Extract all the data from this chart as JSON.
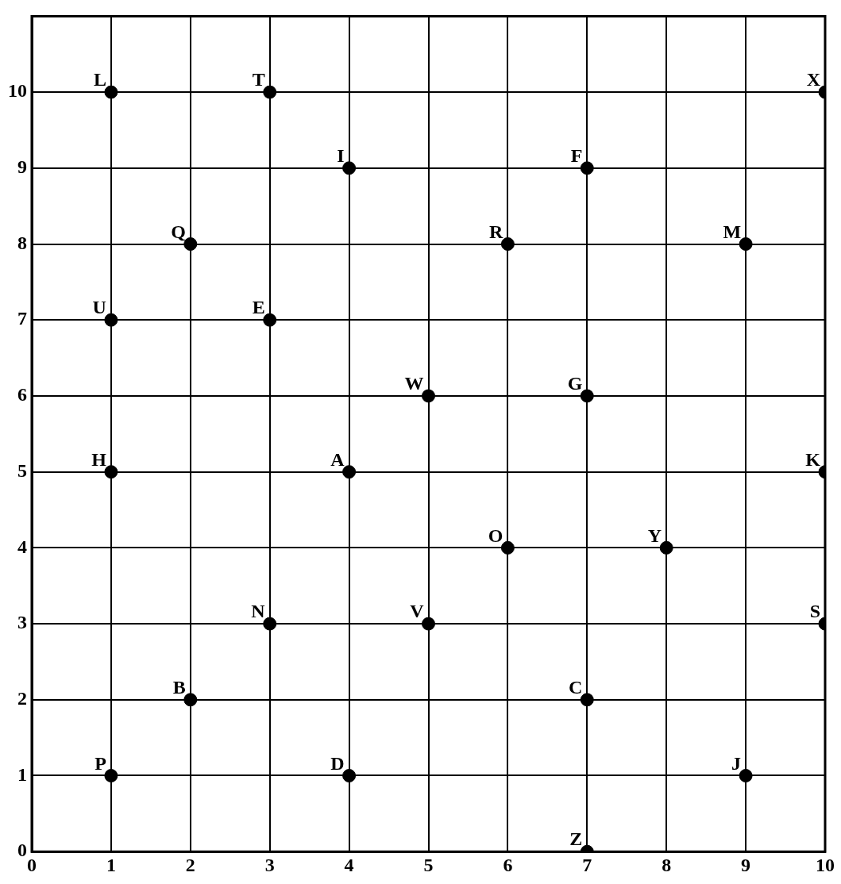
{
  "chart_data": {
    "type": "scatter",
    "x": [
      1,
      3,
      10,
      4,
      7,
      2,
      6,
      9,
      1,
      3,
      5,
      7,
      1,
      4,
      10,
      6,
      8,
      3,
      5,
      10,
      2,
      7,
      1,
      4,
      9,
      7
    ],
    "values": [
      10,
      10,
      10,
      9,
      9,
      8,
      8,
      8,
      7,
      7,
      6,
      6,
      5,
      5,
      5,
      4,
      4,
      3,
      3,
      3,
      2,
      2,
      1,
      1,
      1,
      0
    ],
    "color": "#000000",
    "marker": "circle",
    "xlim": [
      0,
      10
    ],
    "xticks": [
      0,
      1,
      2,
      3,
      4,
      5,
      6,
      7,
      8,
      9,
      10
    ],
    "ylim": [
      0,
      11
    ],
    "yticks": [
      0,
      1,
      2,
      3,
      4,
      5,
      6,
      7,
      8,
      9,
      10
    ],
    "grid": true,
    "legend": false,
    "annotations": [
      {
        "text": "L",
        "x": 1,
        "y": 10
      },
      {
        "text": "T",
        "x": 3,
        "y": 10
      },
      {
        "text": "X",
        "x": 10,
        "y": 10
      },
      {
        "text": "I",
        "x": 4,
        "y": 9
      },
      {
        "text": "F",
        "x": 7,
        "y": 9
      },
      {
        "text": "Q",
        "x": 2,
        "y": 8
      },
      {
        "text": "R",
        "x": 6,
        "y": 8
      },
      {
        "text": "M",
        "x": 9,
        "y": 8
      },
      {
        "text": "U",
        "x": 1,
        "y": 7
      },
      {
        "text": "E",
        "x": 3,
        "y": 7
      },
      {
        "text": "W",
        "x": 5,
        "y": 6
      },
      {
        "text": "G",
        "x": 7,
        "y": 6
      },
      {
        "text": "H",
        "x": 1,
        "y": 5
      },
      {
        "text": "A",
        "x": 4,
        "y": 5
      },
      {
        "text": "K",
        "x": 10,
        "y": 5
      },
      {
        "text": "O",
        "x": 6,
        "y": 4
      },
      {
        "text": "Y",
        "x": 8,
        "y": 4
      },
      {
        "text": "N",
        "x": 3,
        "y": 3
      },
      {
        "text": "V",
        "x": 5,
        "y": 3
      },
      {
        "text": "S",
        "x": 10,
        "y": 3
      },
      {
        "text": "B",
        "x": 2,
        "y": 2
      },
      {
        "text": "C",
        "x": 7,
        "y": 2
      },
      {
        "text": "P",
        "x": 1,
        "y": 1
      },
      {
        "text": "D",
        "x": 4,
        "y": 1
      },
      {
        "text": "J",
        "x": 9,
        "y": 1
      },
      {
        "text": "Z",
        "x": 7,
        "y": 0
      }
    ]
  }
}
